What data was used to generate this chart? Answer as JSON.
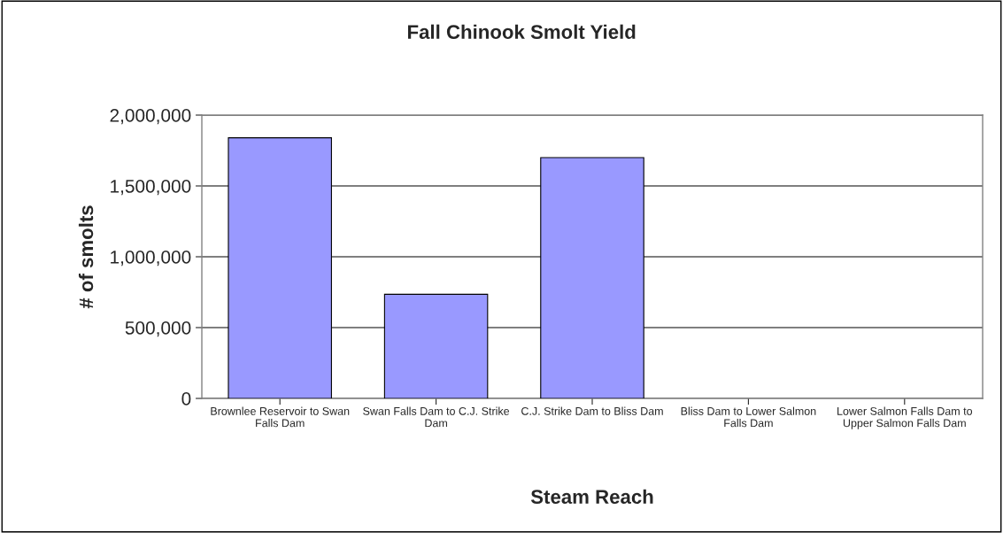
{
  "chart_data": {
    "type": "bar",
    "title": "Fall Chinook Smolt Yield",
    "xlabel": "Steam Reach",
    "ylabel": "# of smolts",
    "categories": [
      "Brownlee Reservoir to Swan Falls Dam",
      "Swan Falls Dam to C.J. Strike Dam",
      "C.J. Strike Dam to Bliss Dam",
      "Bliss Dam to Lower Salmon Falls Dam",
      "Lower Salmon Falls Dam to Upper Salmon Falls Dam"
    ],
    "values": [
      1840000,
      735000,
      1700000,
      0,
      0
    ],
    "color": "#9999ff",
    "ylim": [
      0,
      2000000
    ],
    "yticks": [
      {
        "value": 0,
        "label": "0"
      },
      {
        "value": 500000,
        "label": "500,000"
      },
      {
        "value": 1000000,
        "label": "1,000,000"
      },
      {
        "value": 1500000,
        "label": "1,500,000"
      },
      {
        "value": 2000000,
        "label": "2,000,000"
      }
    ],
    "grid": "y",
    "legend": false
  }
}
